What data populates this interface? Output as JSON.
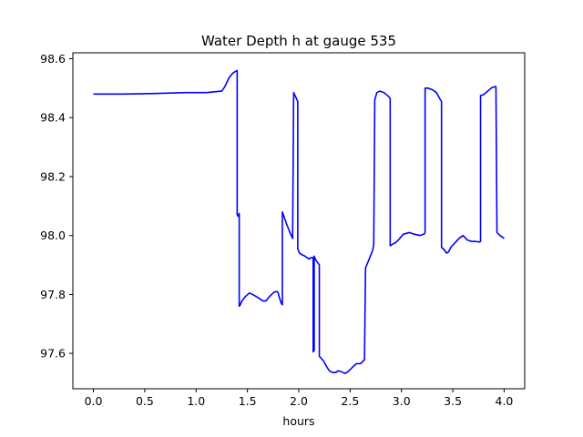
{
  "chart_data": {
    "type": "line",
    "title": "Water Depth h at gauge 535",
    "xlabel": "hours",
    "ylabel": "",
    "xlim": [
      -0.2,
      4.2
    ],
    "ylim": [
      97.48,
      98.62
    ],
    "xticks": [
      0.0,
      0.5,
      1.0,
      1.5,
      2.0,
      2.5,
      3.0,
      3.5,
      4.0
    ],
    "xtick_labels": [
      "0.0",
      "0.5",
      "1.0",
      "1.5",
      "2.0",
      "2.5",
      "3.0",
      "3.5",
      "4.0"
    ],
    "yticks": [
      97.6,
      97.8,
      98.0,
      98.2,
      98.4,
      98.6
    ],
    "ytick_labels": [
      "97.6",
      "97.8",
      "98.0",
      "98.2",
      "98.4",
      "98.6"
    ],
    "grid": false,
    "legend": "none",
    "series": [
      {
        "color": "#0000ff",
        "x": [
          0.0,
          0.3,
          0.6,
          0.9,
          1.1,
          1.25,
          1.28,
          1.32,
          1.36,
          1.4,
          1.4,
          1.41,
          1.42,
          1.42,
          1.43,
          1.45,
          1.48,
          1.52,
          1.55,
          1.6,
          1.65,
          1.68,
          1.72,
          1.76,
          1.79,
          1.8,
          1.81,
          1.83,
          1.84,
          1.84,
          1.86,
          1.88,
          1.92,
          1.94,
          1.95,
          1.97,
          1.99,
          1.99,
          2.0,
          2.01,
          2.03,
          2.06,
          2.1,
          2.12,
          2.14,
          2.14,
          2.15,
          2.15,
          2.16,
          2.18,
          2.2,
          2.2,
          2.24,
          2.28,
          2.3,
          2.33,
          2.36,
          2.38,
          2.4,
          2.43,
          2.45,
          2.48,
          2.52,
          2.56,
          2.6,
          2.63,
          2.64,
          2.65,
          2.68,
          2.72,
          2.73,
          2.74,
          2.76,
          2.79,
          2.83,
          2.88,
          2.89,
          2.89,
          2.92,
          2.94,
          2.97,
          3.02,
          3.08,
          3.12,
          3.18,
          3.22,
          3.23,
          3.23,
          3.26,
          3.3,
          3.34,
          3.38,
          3.39,
          3.39,
          3.42,
          3.44,
          3.46,
          3.48,
          3.52,
          3.56,
          3.6,
          3.64,
          3.68,
          3.72,
          3.76,
          3.77,
          3.77,
          3.8,
          3.84,
          3.88,
          3.91,
          3.92,
          3.93,
          3.96,
          4.0
        ],
        "y": [
          98.48,
          98.48,
          98.482,
          98.485,
          98.485,
          98.49,
          98.505,
          98.535,
          98.552,
          98.56,
          98.07,
          98.065,
          98.075,
          97.76,
          97.765,
          97.78,
          97.793,
          97.805,
          97.8,
          97.79,
          97.778,
          97.778,
          97.795,
          97.808,
          97.81,
          97.805,
          97.79,
          97.77,
          97.765,
          98.08,
          98.06,
          98.04,
          98.005,
          97.99,
          98.485,
          98.47,
          98.455,
          97.955,
          97.945,
          97.94,
          97.935,
          97.93,
          97.92,
          97.925,
          97.925,
          97.605,
          97.61,
          97.93,
          97.92,
          97.91,
          97.9,
          97.59,
          97.575,
          97.55,
          97.54,
          97.535,
          97.535,
          97.54,
          97.54,
          97.535,
          97.532,
          97.538,
          97.552,
          97.565,
          97.565,
          97.575,
          97.58,
          97.89,
          97.915,
          97.95,
          97.97,
          98.46,
          98.485,
          98.49,
          98.485,
          98.47,
          98.465,
          97.965,
          97.972,
          97.975,
          97.985,
          98.005,
          98.01,
          98.005,
          98.0,
          98.005,
          98.01,
          98.5,
          98.5,
          98.495,
          98.485,
          98.46,
          98.455,
          97.96,
          97.95,
          97.94,
          97.945,
          97.96,
          97.975,
          97.99,
          98.0,
          97.985,
          97.98,
          97.98,
          97.978,
          97.98,
          98.475,
          98.478,
          98.49,
          98.502,
          98.505,
          98.505,
          98.01,
          98.0,
          97.99
        ]
      }
    ]
  }
}
